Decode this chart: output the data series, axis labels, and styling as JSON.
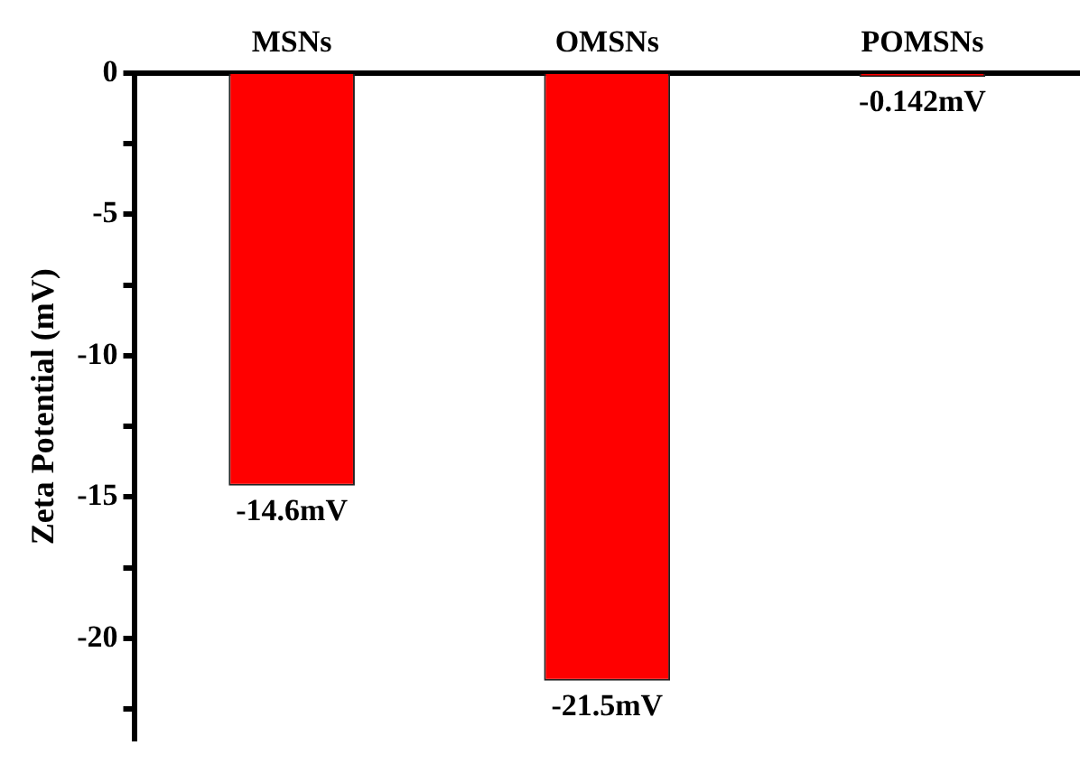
{
  "chart_data": {
    "type": "bar",
    "ylabel": "Zeta Potential (mV)",
    "categories": [
      "MSNs",
      "OMSNs",
      "POMSNs"
    ],
    "series": [
      {
        "color": "#ff0000",
        "values": [
          -14.6,
          -21.5,
          -0.142
        ],
        "value_labels": [
          "-14.6mV",
          "-21.5mV",
          "-0.142mV"
        ]
      }
    ],
    "ylim": [
      -23.6,
      0
    ],
    "yticks": [
      0,
      {
        "value": -2.5,
        "label": null
      },
      -5,
      {
        "value": -7.5,
        "label": null
      },
      -10,
      {
        "value": -12.5,
        "label": null
      },
      -15,
      {
        "value": -17.5,
        "label": null
      },
      -20,
      {
        "value": -22.5,
        "label": null
      }
    ],
    "grid": false,
    "legend": false
  }
}
